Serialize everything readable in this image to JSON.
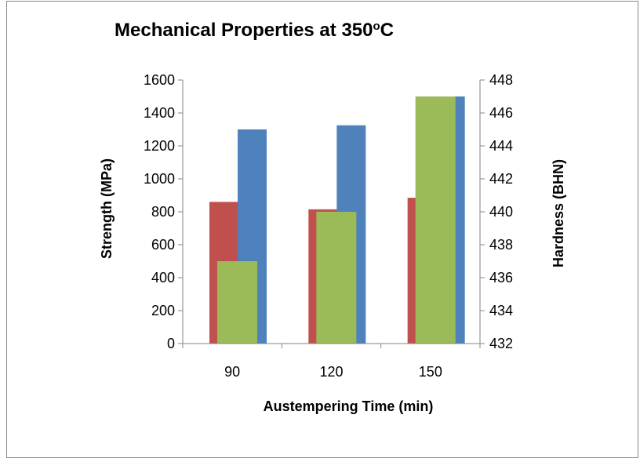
{
  "chart_data": {
    "type": "bar",
    "title": "Mechanical Properties at 350",
    "title_sup": "o",
    "title_suffix": "C",
    "xlabel": "Austempering Time (min)",
    "ylabel": "Strength (MPa)",
    "y2label": "Hardness (BHN)",
    "categories": [
      "90",
      "120",
      "150"
    ],
    "ylim": [
      0,
      1600
    ],
    "y_ticks": [
      0,
      200,
      400,
      600,
      800,
      1000,
      1200,
      1400,
      1600
    ],
    "y2lim": [
      432,
      448
    ],
    "y2_ticks": [
      432,
      434,
      436,
      438,
      440,
      442,
      444,
      446,
      448
    ],
    "grid": false,
    "legend": "none",
    "series": [
      {
        "values": [
          860,
          815,
          885
        ],
        "axis": "left",
        "color": "#C0504D"
      },
      {
        "values": [
          1300,
          1325,
          1500
        ],
        "axis": "left",
        "color": "#4F81BD"
      },
      {
        "values": [
          437,
          440,
          447
        ],
        "axis": "right",
        "color": "#9BBB59"
      }
    ]
  }
}
